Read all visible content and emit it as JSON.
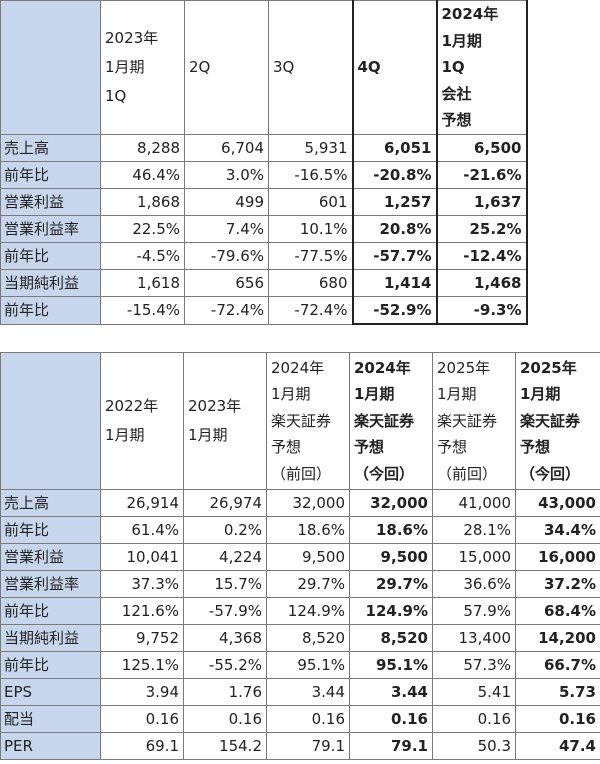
{
  "table1": {
    "headers": [
      [],
      [
        "2023年",
        "1月期",
        "1Q"
      ],
      [
        "2Q"
      ],
      [
        "3Q"
      ],
      [
        "4Q"
      ],
      [
        "2024年",
        "1月期",
        "1Q",
        "会社",
        "予想"
      ]
    ],
    "rows": [
      {
        "label": "売上高",
        "values": [
          "8,288",
          "6,704",
          "5,931",
          "6,051",
          "6,500"
        ]
      },
      {
        "label": "前年比",
        "values": [
          "46.4%",
          "3.0%",
          "-16.5%",
          "-20.8%",
          "-21.6%"
        ]
      },
      {
        "label": "営業利益",
        "values": [
          "1,868",
          "499",
          "601",
          "1,257",
          "1,637"
        ]
      },
      {
        "label": "営業利益率",
        "values": [
          "22.5%",
          "7.4%",
          "10.1%",
          "20.8%",
          "25.2%"
        ]
      },
      {
        "label": "前年比",
        "values": [
          "-4.5%",
          "-79.6%",
          "-77.5%",
          "-57.7%",
          "-12.4%"
        ]
      },
      {
        "label": "当期純利益",
        "values": [
          "1,618",
          "656",
          "680",
          "1,414",
          "1,468"
        ]
      },
      {
        "label": "前年比",
        "values": [
          "-15.4%",
          "-72.4%",
          "-72.4%",
          "-52.9%",
          "-9.3%"
        ]
      }
    ]
  },
  "table2": {
    "headers": [
      [],
      [
        "2022年",
        "1月期"
      ],
      [
        "2023年",
        "1月期"
      ],
      [
        "2024年",
        "1月期",
        "楽天証券",
        "予想",
        "（前回）"
      ],
      [
        "2024年",
        "1月期",
        "楽天証券",
        "予想",
        "（今回）"
      ],
      [
        "2025年",
        "1月期",
        "楽天証券",
        "予想",
        "（前回）"
      ],
      [
        "2025年",
        "1月期",
        "楽天証券",
        "予想",
        "（今回）"
      ]
    ],
    "rows": [
      {
        "label": "売上高",
        "values": [
          "26,914",
          "26,974",
          "32,000",
          "32,000",
          "41,000",
          "43,000"
        ]
      },
      {
        "label": "前年比",
        "values": [
          "61.4%",
          "0.2%",
          "18.6%",
          "18.6%",
          "28.1%",
          "34.4%"
        ]
      },
      {
        "label": "営業利益",
        "values": [
          "10,041",
          "4,224",
          "9,500",
          "9,500",
          "15,000",
          "16,000"
        ]
      },
      {
        "label": "営業利益率",
        "values": [
          "37.3%",
          "15.7%",
          "29.7%",
          "29.7%",
          "36.6%",
          "37.2%"
        ]
      },
      {
        "label": "前年比",
        "values": [
          "121.6%",
          "-57.9%",
          "124.9%",
          "124.9%",
          "57.9%",
          "68.4%"
        ]
      },
      {
        "label": "当期純利益",
        "values": [
          "9,752",
          "4,368",
          "8,520",
          "8,520",
          "13,400",
          "14,200"
        ]
      },
      {
        "label": "前年比",
        "values": [
          "125.1%",
          "-55.2%",
          "95.1%",
          "95.1%",
          "57.3%",
          "66.7%"
        ]
      },
      {
        "label": "EPS",
        "values": [
          "3.94",
          "1.76",
          "3.44",
          "3.44",
          "5.41",
          "5.73"
        ]
      },
      {
        "label": "配当",
        "values": [
          "0.16",
          "0.16",
          "0.16",
          "0.16",
          "0.16",
          "0.16"
        ]
      },
      {
        "label": "PER",
        "values": [
          "69.1",
          "154.2",
          "79.1",
          "79.1",
          "50.3",
          "47.4"
        ]
      }
    ]
  }
}
